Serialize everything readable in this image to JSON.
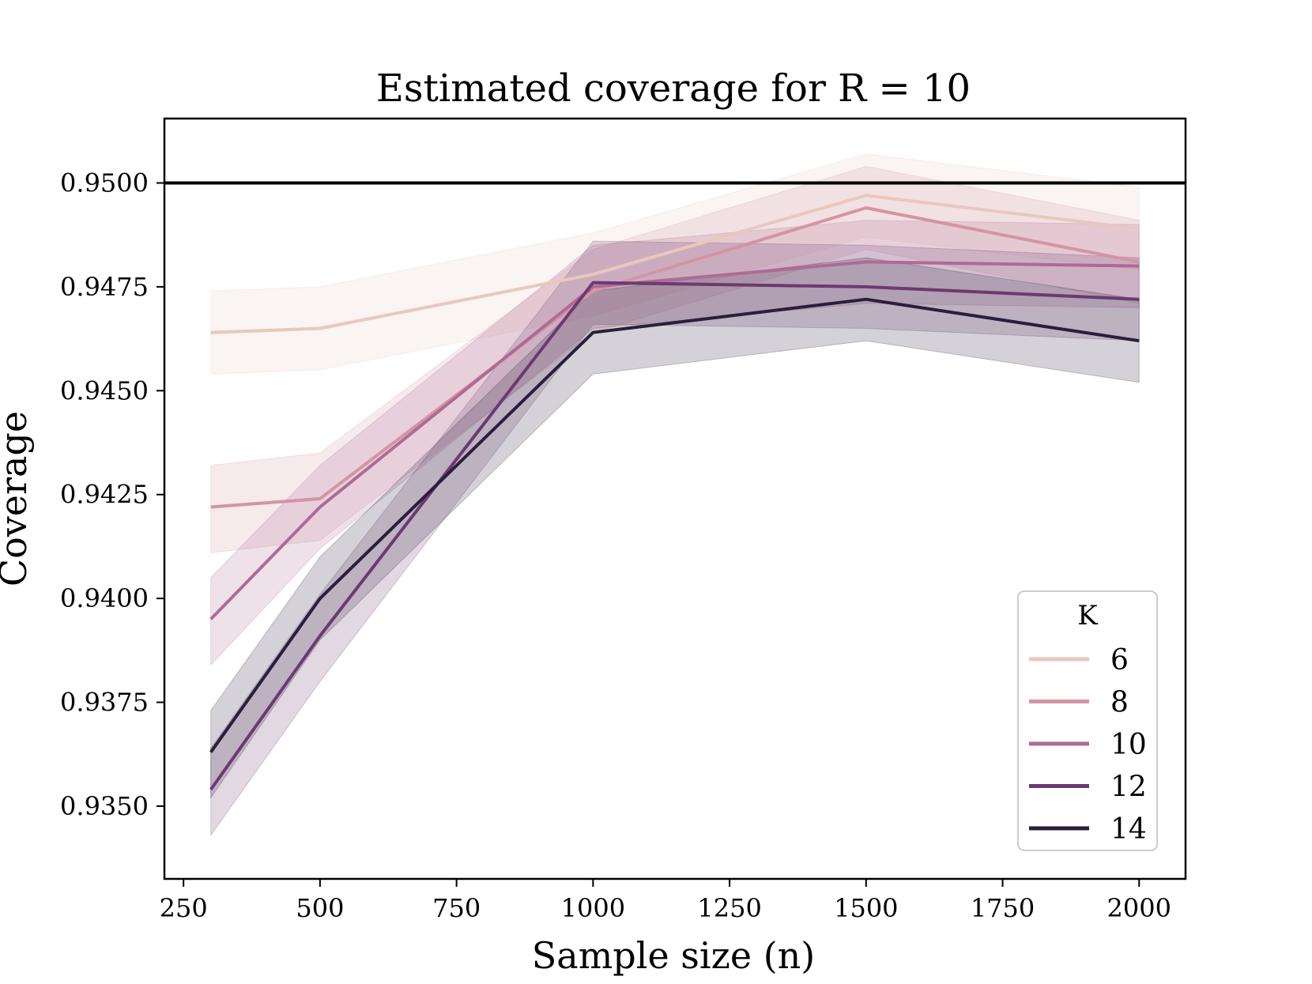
{
  "chart_data": {
    "type": "line",
    "title": "Estimated coverage for R = 10",
    "xlabel": "Sample size (n)",
    "ylabel": "Coverage",
    "xlim": [
      215,
      2085
    ],
    "ylim": [
      0.93325,
      0.95155
    ],
    "x_ticks": [
      250,
      500,
      750,
      1000,
      1250,
      1500,
      1750,
      2000
    ],
    "x_tick_labels": [
      "250",
      "500",
      "750",
      "1000",
      "1250",
      "1500",
      "1750",
      "2000"
    ],
    "y_ticks": [
      0.935,
      0.9375,
      0.94,
      0.9425,
      0.945,
      0.9475,
      0.95
    ],
    "y_tick_labels": [
      "0.9350",
      "0.9375",
      "0.9400",
      "0.9425",
      "0.9450",
      "0.9475",
      "0.9500"
    ],
    "reference_line": {
      "y": 0.95,
      "color": "#000000"
    },
    "x": [
      300,
      500,
      1000,
      1500,
      2000
    ],
    "series": [
      {
        "name": "6",
        "color": "#e8c8be",
        "values": [
          0.9464,
          0.9465,
          0.9478,
          0.9497,
          0.9489
        ],
        "lower": [
          0.9454,
          0.9455,
          0.9468,
          0.9487,
          0.9479
        ],
        "upper": [
          0.9474,
          0.9475,
          0.9488,
          0.9507,
          0.9499
        ]
      },
      {
        "name": "8",
        "color": "#d295a3",
        "values": [
          0.9422,
          0.9424,
          0.9474,
          0.9494,
          0.9481
        ],
        "lower": [
          0.9411,
          0.9414,
          0.9464,
          0.9484,
          0.9471
        ],
        "upper": [
          0.9432,
          0.9435,
          0.9484,
          0.9504,
          0.9491
        ]
      },
      {
        "name": "10",
        "color": "#ad6b94",
        "values": [
          0.9395,
          0.9422,
          0.9475,
          0.9481,
          0.948
        ],
        "lower": [
          0.9384,
          0.9412,
          0.9465,
          0.9471,
          0.947
        ],
        "upper": [
          0.9405,
          0.9432,
          0.9485,
          0.9491,
          0.949
        ]
      },
      {
        "name": "12",
        "color": "#6b3a70",
        "values": [
          0.9354,
          0.9391,
          0.9476,
          0.9475,
          0.9472
        ],
        "lower": [
          0.9343,
          0.938,
          0.9466,
          0.9465,
          0.9462
        ],
        "upper": [
          0.9364,
          0.9401,
          0.9486,
          0.9485,
          0.9482
        ]
      },
      {
        "name": "14",
        "color": "#2a1e3c",
        "values": [
          0.9363,
          0.94,
          0.9464,
          0.9472,
          0.9462
        ],
        "lower": [
          0.9352,
          0.939,
          0.9454,
          0.9462,
          0.9452
        ],
        "upper": [
          0.9373,
          0.941,
          0.9474,
          0.9482,
          0.9472
        ]
      }
    ],
    "legend": {
      "title": "K",
      "placement": "lower-right"
    },
    "grid": false
  }
}
